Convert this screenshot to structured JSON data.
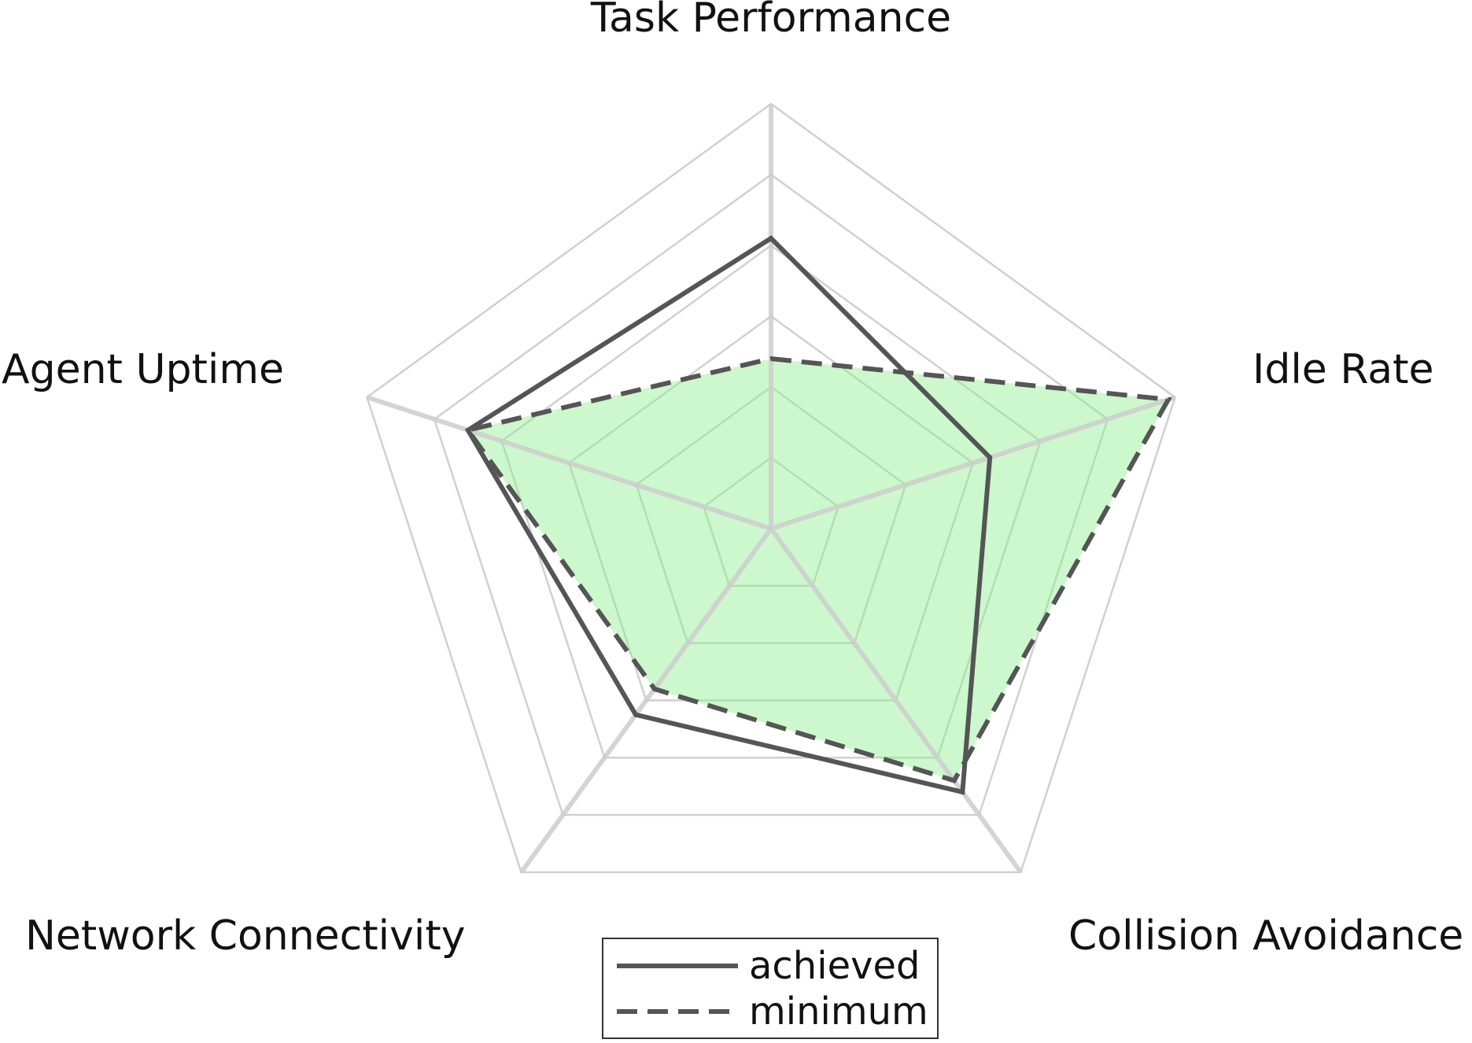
{
  "chart_data": {
    "type": "radar",
    "axes": [
      "Task Performance",
      "Idle Rate",
      "Collision Avoidance",
      "Network Connectivity",
      "Agent Uptime"
    ],
    "rlim": [
      -0.2,
      1.0
    ],
    "grid_levels": [
      0,
      0.2,
      0.4,
      0.6,
      0.8,
      1.0
    ],
    "series": [
      {
        "name": "achieved",
        "style": "solid",
        "values": [
          0.62,
          0.45,
          0.72,
          0.45,
          0.7
        ]
      },
      {
        "name": "minimum",
        "style": "dashed",
        "filled": true,
        "values": [
          0.28,
          0.98,
          0.68,
          0.36,
          0.7
        ]
      }
    ],
    "legend": {
      "position": "bottom-center",
      "entries": [
        "achieved",
        "minimum"
      ]
    },
    "colors": {
      "grid": "#d0d0d0",
      "spoke": "#cccccc",
      "line": "#555555",
      "fill": "#90ee90",
      "fill_opacity": "0.45"
    }
  }
}
